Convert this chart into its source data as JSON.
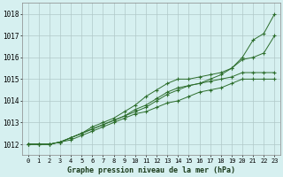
{
  "title": "Graphe pression niveau de la mer (hPa)",
  "bg_color": "#d6f0f0",
  "grid_color": "#b0c8c8",
  "line_color": "#2d6e2d",
  "xlim": [
    -0.5,
    23.5
  ],
  "ylim": [
    1011.5,
    1018.5
  ],
  "yticks": [
    1012,
    1013,
    1014,
    1015,
    1016,
    1017,
    1018
  ],
  "xticks": [
    0,
    1,
    2,
    3,
    4,
    5,
    6,
    7,
    8,
    9,
    10,
    11,
    12,
    13,
    14,
    15,
    16,
    17,
    18,
    19,
    20,
    21,
    22,
    23
  ],
  "series": [
    {
      "x": [
        0,
        1,
        2,
        3,
        4,
        5,
        6,
        7,
        8,
        9,
        10,
        11,
        12,
        13,
        14,
        15,
        16,
        17,
        18,
        19,
        20,
        21,
        22,
        23
      ],
      "y": [
        1012.0,
        1012.0,
        1012.0,
        1012.1,
        1012.3,
        1012.5,
        1012.7,
        1012.9,
        1013.1,
        1013.3,
        1013.5,
        1013.7,
        1014.0,
        1014.3,
        1014.5,
        1014.7,
        1014.8,
        1015.0,
        1015.2,
        1015.5,
        1016.0,
        1016.8,
        1017.1,
        1018.0
      ]
    },
    {
      "x": [
        0,
        1,
        2,
        3,
        4,
        5,
        6,
        7,
        8,
        9,
        10,
        11,
        12,
        13,
        14,
        15,
        16,
        17,
        18,
        19,
        20,
        21,
        22,
        23
      ],
      "y": [
        1012.0,
        1012.0,
        1012.0,
        1012.1,
        1012.3,
        1012.5,
        1012.8,
        1013.0,
        1013.2,
        1013.5,
        1013.8,
        1014.2,
        1014.5,
        1014.8,
        1015.0,
        1015.0,
        1015.1,
        1015.2,
        1015.3,
        1015.5,
        1015.9,
        1016.0,
        1016.2,
        1017.0
      ]
    },
    {
      "x": [
        0,
        1,
        2,
        3,
        4,
        5,
        6,
        7,
        8,
        9,
        10,
        11,
        12,
        13,
        14,
        15,
        16,
        17,
        18,
        19,
        20,
        21,
        22,
        23
      ],
      "y": [
        1012.0,
        1012.0,
        1012.0,
        1012.1,
        1012.3,
        1012.5,
        1012.7,
        1012.9,
        1013.1,
        1013.3,
        1013.6,
        1013.8,
        1014.1,
        1014.4,
        1014.6,
        1014.7,
        1014.8,
        1014.9,
        1015.0,
        1015.1,
        1015.3,
        1015.3,
        1015.3,
        1015.3
      ]
    },
    {
      "x": [
        0,
        1,
        2,
        3,
        4,
        5,
        6,
        7,
        8,
        9,
        10,
        11,
        12,
        13,
        14,
        15,
        16,
        17,
        18,
        19,
        20,
        21,
        22,
        23
      ],
      "y": [
        1012.0,
        1012.0,
        1012.0,
        1012.1,
        1012.2,
        1012.4,
        1012.6,
        1012.8,
        1013.0,
        1013.2,
        1013.4,
        1013.5,
        1013.7,
        1013.9,
        1014.0,
        1014.2,
        1014.4,
        1014.5,
        1014.6,
        1014.8,
        1015.0,
        1015.0,
        1015.0,
        1015.0
      ]
    }
  ]
}
